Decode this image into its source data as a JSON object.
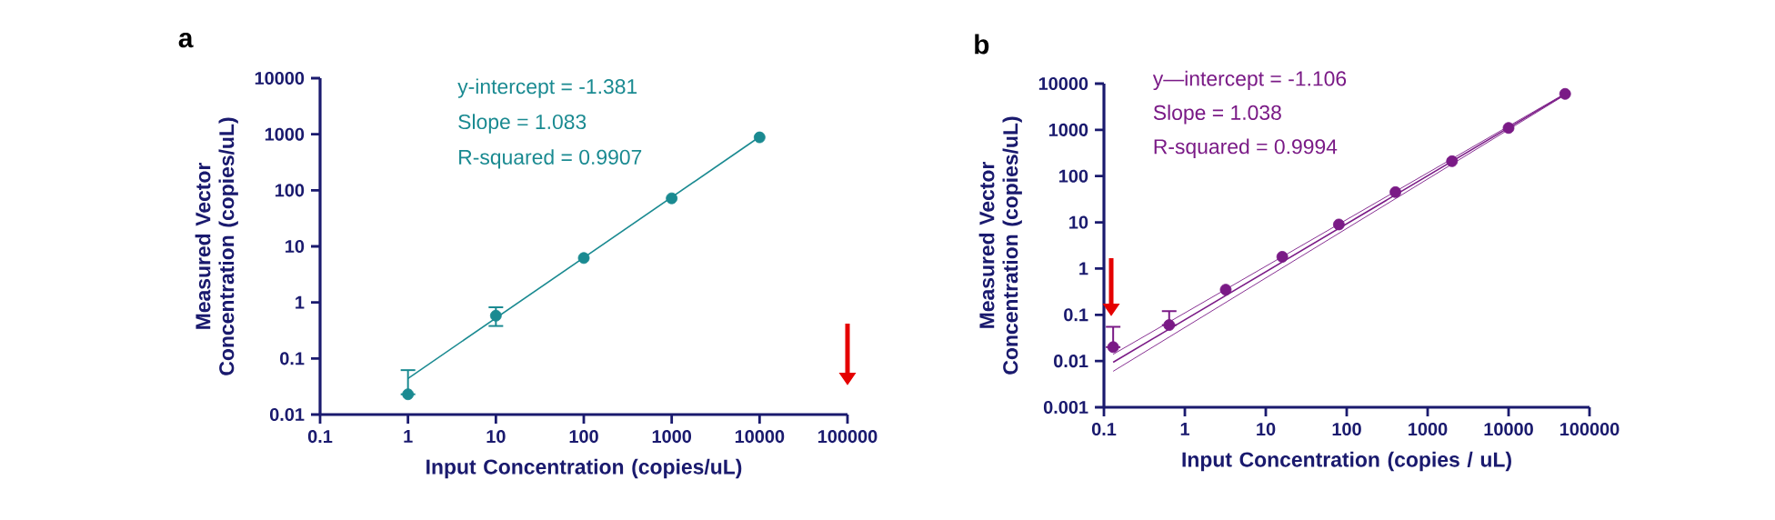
{
  "chart_data": [
    {
      "type": "scatter",
      "title": "a",
      "xlabel": "Input Concentration (copies/uL)",
      "ylabel": "Measured Vector Concentration (copies/uL)",
      "log": "xy",
      "xlim": [
        0.1,
        100000
      ],
      "ylim": [
        0.01,
        10000
      ],
      "xticks": [
        0.1,
        1,
        10,
        100,
        1000,
        10000,
        100000
      ],
      "yticks": [
        0.01,
        0.1,
        1,
        10,
        100,
        1000,
        10000
      ],
      "annotations": [
        "y-intercept =  -1.381",
        "Slope = 1.083",
        "R-squared = 0.9907"
      ],
      "series": [
        {
          "marker": "circle",
          "color": "#1a8a91",
          "x": [
            1,
            10,
            100,
            1000,
            10000
          ],
          "values": [
            0.023,
            0.58,
            6.2,
            72,
            880
          ],
          "errors": [
            [
              0.023,
              0.062
            ],
            [
              0.38,
              0.82
            ],
            null,
            null,
            null
          ]
        },
        {
          "type": "line",
          "marker": "none",
          "color": "#1a8a91",
          "x": [
            1,
            10000
          ],
          "values": [
            0.044,
            900
          ]
        }
      ]
    },
    {
      "type": "scatter",
      "title": "b",
      "xlabel": "Input Concentration (copies / uL)",
      "ylabel": "Measured Vector Concentration (copies/uL)",
      "log": "xy",
      "xlim": [
        0.1,
        100000
      ],
      "ylim": [
        0.001,
        10000
      ],
      "xticks": [
        0.1,
        1,
        10,
        100,
        1000,
        10000,
        100000
      ],
      "yticks": [
        0.001,
        0.01,
        0.1,
        1,
        10,
        100,
        1000,
        10000
      ],
      "annotations": [
        "y—intercept = -1.106",
        "Slope = 1.038",
        "R-squared = 0.9994"
      ],
      "series": [
        {
          "marker": "circle",
          "color": "#7a1a86",
          "x": [
            0.13,
            0.64,
            3.2,
            16,
            80,
            400,
            2000,
            10000,
            50000
          ],
          "values": [
            0.02,
            0.06,
            0.35,
            1.8,
            9,
            45,
            210,
            1100,
            6000
          ],
          "errors": [
            [
              0.02,
              0.055
            ],
            [
              0.06,
              0.12
            ],
            null,
            null,
            null,
            null,
            null,
            null,
            null
          ]
        },
        {
          "type": "line",
          "marker": "none",
          "color": "#7a1a86",
          "x": [
            0.13,
            50000
          ],
          "values": [
            0.0094,
            5900
          ]
        },
        {
          "type": "line",
          "marker": "none",
          "color": "#7a1a86",
          "x": [
            0.13,
            50000
          ],
          "values": [
            0.014,
            6100
          ]
        },
        {
          "type": "line",
          "marker": "none",
          "color": "#7a1a86",
          "x": [
            0.13,
            50000
          ],
          "values": [
            0.006,
            5700
          ]
        }
      ]
    }
  ]
}
